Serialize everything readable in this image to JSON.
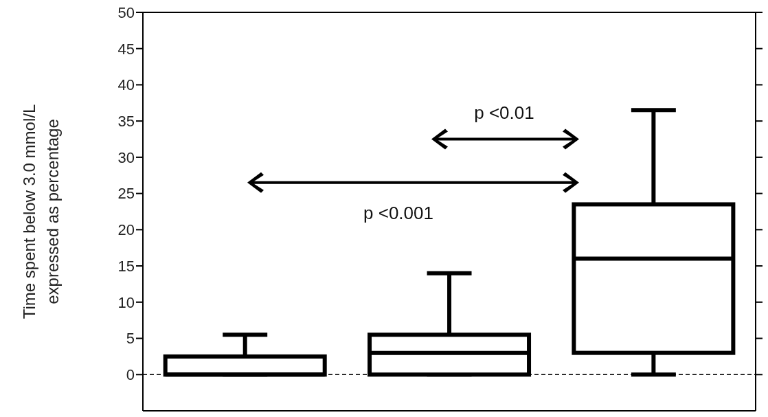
{
  "chart_data": {
    "type": "box",
    "ylabel": "Time spent below 3.0 mmol/L\nexpressed as percentage",
    "categories": [
      null,
      null,
      null
    ],
    "boxes": [
      {
        "low": 0,
        "q1": 0,
        "median": 0,
        "q3": 2.5,
        "high": 5.5
      },
      {
        "low": 0,
        "q1": 0,
        "median": 3,
        "q3": 5.5,
        "high": 14
      },
      {
        "low": 0,
        "q1": 3,
        "median": 16,
        "q3": 23.5,
        "high": 36.5
      }
    ],
    "ylim": [
      -5,
      50
    ],
    "yticks": [
      0,
      5,
      10,
      15,
      20,
      25,
      30,
      35,
      40,
      45,
      50
    ],
    "ref_lines": [
      {
        "axis": "y",
        "value": 0,
        "line_style": "dashed",
        "color": "#000000"
      }
    ],
    "annotations": [
      "p <0.01",
      "p <0.001"
    ]
  }
}
